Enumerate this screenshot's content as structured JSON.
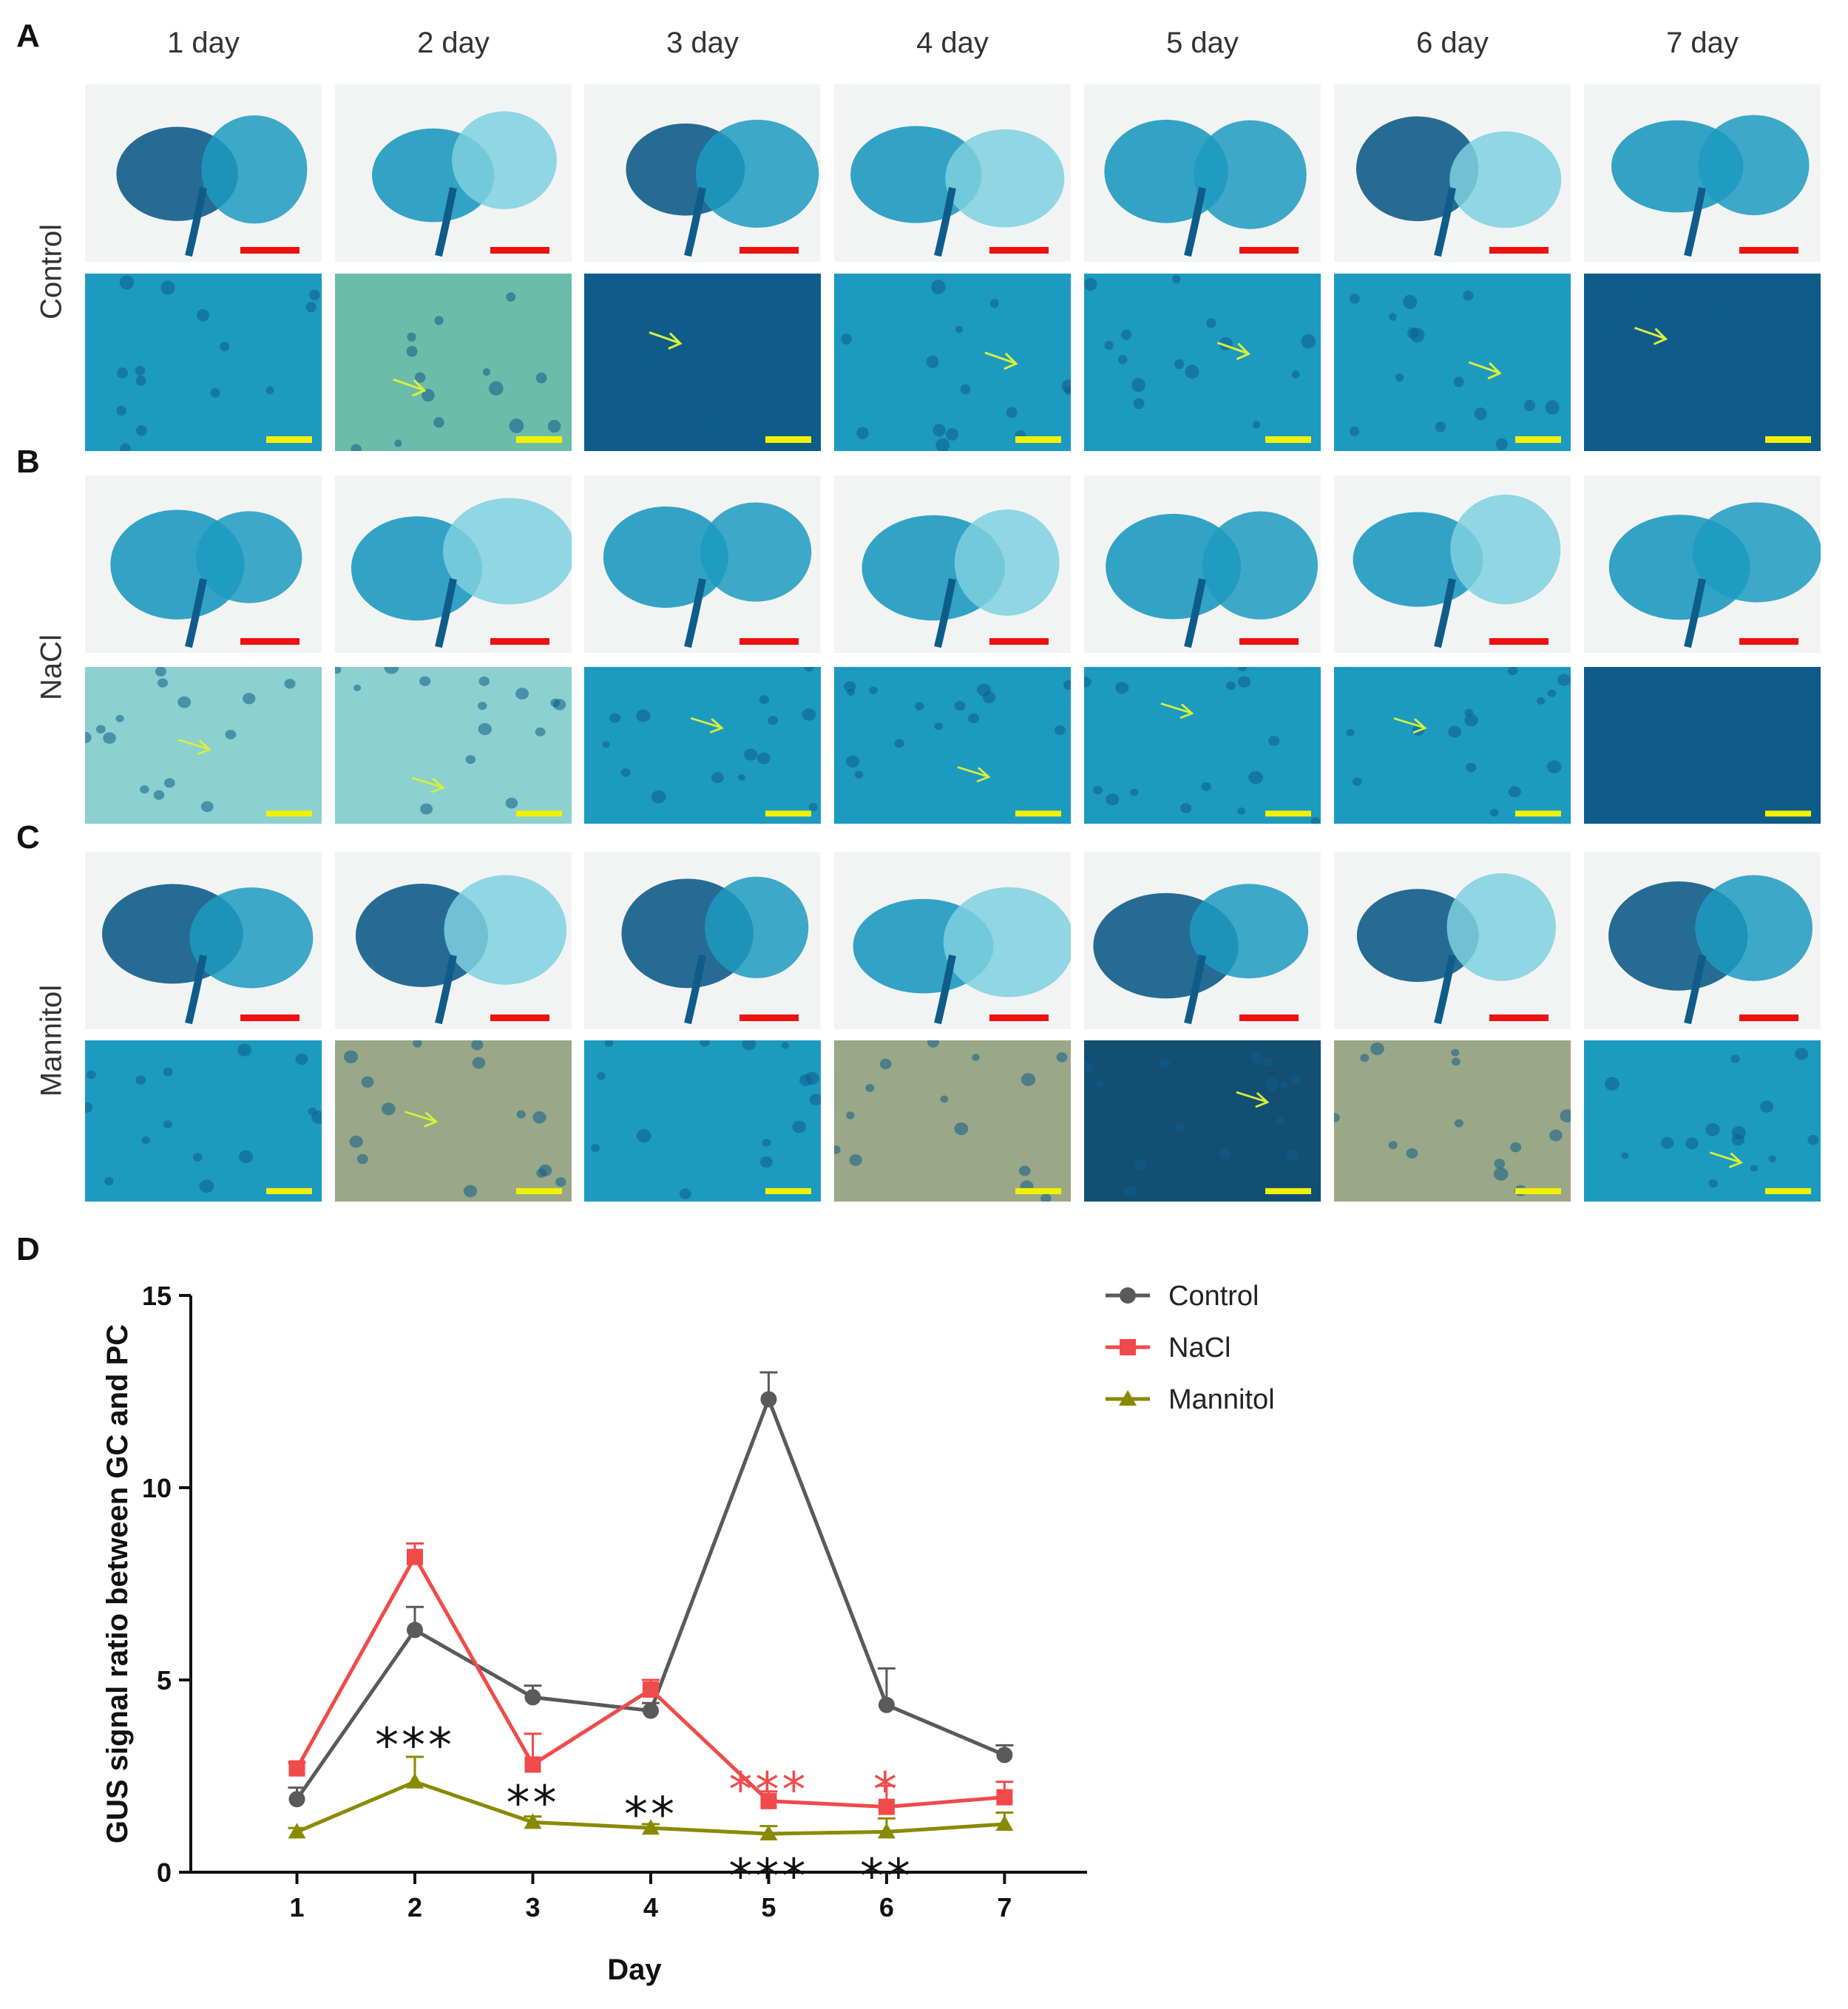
{
  "panels": {
    "A": {
      "letter": "A",
      "row_label": "Control",
      "tone": "control"
    },
    "B": {
      "letter": "B",
      "row_label": "NaCl",
      "tone": "nacl"
    },
    "C": {
      "letter": "C",
      "row_label": "Mannitol",
      "tone": "mannitol"
    },
    "D": {
      "letter": "D"
    }
  },
  "day_labels": [
    "1 day",
    "2 day",
    "3 day",
    "4 day",
    "5 day",
    "6 day",
    "7 day"
  ],
  "colors": {
    "control": "#5a5a5a",
    "nacl": "#f04a4a",
    "mannitol": "#8a8a00",
    "scale_red": "#ee1111",
    "scale_yellow": "#f2f200",
    "arrow": "#d8f03a",
    "tissue_dark": "#0f5c8a",
    "tissue_mid": "#1d9ac0",
    "tissue_light": "#7fd0df",
    "background_light": "#f2f4f4"
  },
  "chart_data": {
    "type": "line",
    "xlabel": "Day",
    "ylabel": "GUS signal ratio between GC and PC",
    "x": [
      1,
      2,
      3,
      4,
      5,
      6,
      7
    ],
    "xlim": [
      0.1,
      7.7
    ],
    "ylim": [
      0,
      15
    ],
    "yticks": [
      0,
      5,
      10,
      15
    ],
    "series": [
      {
        "name": "Control",
        "color": "#5a5a5a",
        "marker": "circle",
        "values": [
          1.9,
          6.3,
          4.55,
          4.2,
          12.3,
          4.35,
          3.05
        ],
        "errors": [
          0.3,
          0.6,
          0.3,
          0.2,
          0.7,
          0.95,
          0.25
        ]
      },
      {
        "name": "NaCl",
        "color": "#f04a4a",
        "marker": "square",
        "values": [
          2.7,
          8.2,
          2.8,
          4.75,
          1.85,
          1.7,
          1.95
        ],
        "errors": [
          0.15,
          0.35,
          0.8,
          0.25,
          0.25,
          0.55,
          0.4
        ]
      },
      {
        "name": "Mannitol",
        "color": "#8a8a00",
        "marker": "triangle",
        "values": [
          1.05,
          2.35,
          1.3,
          1.15,
          1.0,
          1.05,
          1.25
        ],
        "errors": [
          0.1,
          0.65,
          0.15,
          0.1,
          0.2,
          0.35,
          0.3
        ]
      }
    ],
    "annotations": [
      {
        "text": "***",
        "x": 2,
        "y": 3.45,
        "color": "#111111"
      },
      {
        "text": "**",
        "x": 3,
        "y": 1.95,
        "color": "#111111"
      },
      {
        "text": "**",
        "x": 4,
        "y": 1.65,
        "color": "#111111"
      },
      {
        "text": "***",
        "x": 5,
        "y": 2.3,
        "color": "#f04a4a"
      },
      {
        "text": "*",
        "x": 6,
        "y": 2.3,
        "color": "#f04a4a"
      },
      {
        "text": "***",
        "x": 5,
        "y": 0.05,
        "color": "#111111"
      },
      {
        "text": "**",
        "x": 6,
        "y": 0.05,
        "color": "#111111"
      }
    ]
  }
}
